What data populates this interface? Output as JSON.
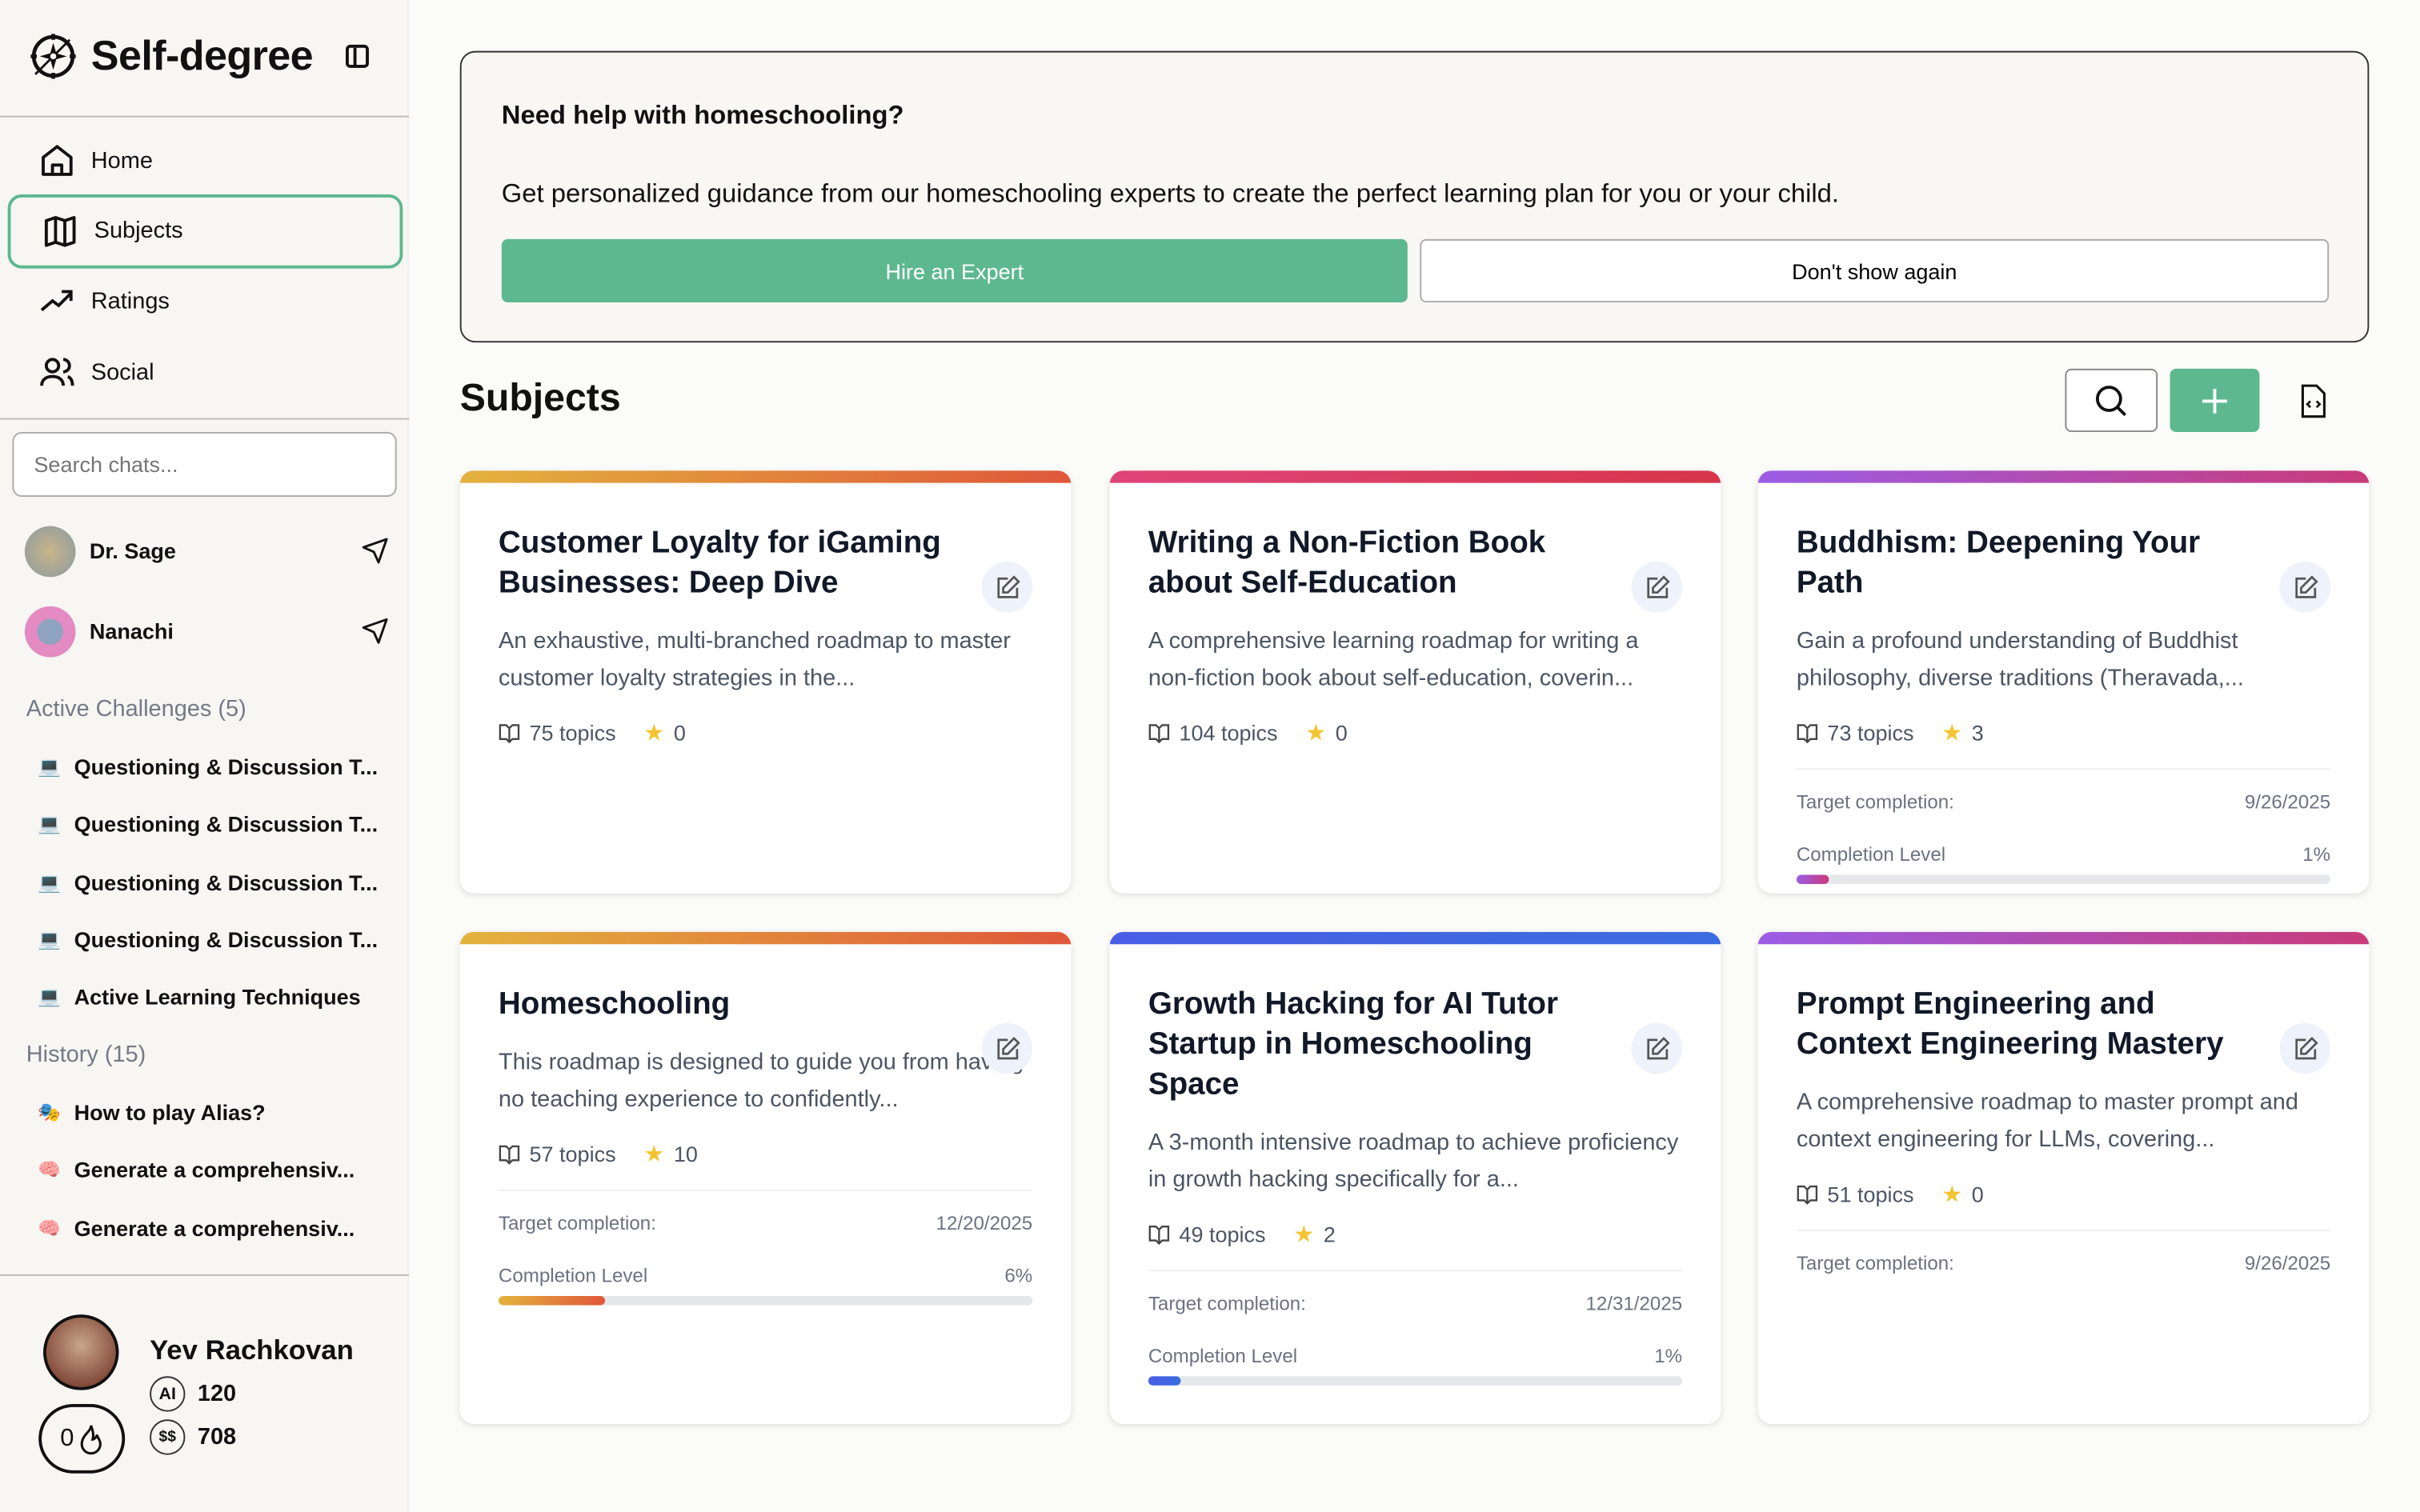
{
  "app": {
    "name": "Self-degree"
  },
  "sidebar": {
    "nav": [
      {
        "label": "Home",
        "icon": "home-icon"
      },
      {
        "label": "Subjects",
        "icon": "map-icon",
        "active": true
      },
      {
        "label": "Ratings",
        "icon": "trending-up-icon"
      },
      {
        "label": "Social",
        "icon": "users-icon"
      }
    ],
    "search_placeholder": "Search chats...",
    "agents": [
      {
        "name": "Dr. Sage"
      },
      {
        "name": "Nanachi"
      }
    ],
    "active_challenges_label": "Active Challenges (5)",
    "challenges": [
      {
        "emoji": "💻",
        "label": "Questioning & Discussion T..."
      },
      {
        "emoji": "💻",
        "label": "Questioning & Discussion T..."
      },
      {
        "emoji": "💻",
        "label": "Questioning & Discussion T..."
      },
      {
        "emoji": "💻",
        "label": "Questioning & Discussion T..."
      },
      {
        "emoji": "💻",
        "label": "Active Learning Techniques"
      }
    ],
    "history_label": "History (15)",
    "history": [
      {
        "emoji": "🎭",
        "label": "How to play Alias?"
      },
      {
        "emoji": "🧠",
        "label": "Generate a comprehensiv..."
      },
      {
        "emoji": "🧠",
        "label": "Generate a comprehensiv..."
      }
    ],
    "user": {
      "name": "Yev Rachkovan",
      "ai_credits": "120",
      "coins": "708",
      "streak": "0"
    }
  },
  "banner": {
    "title": "Need help with homeschooling?",
    "text": "Get personalized guidance from our homeschooling experts to create the perfect learning plan for you or your child.",
    "hire_label": "Hire an Expert",
    "dismiss_label": "Don't show again"
  },
  "subjects": {
    "title": "Subjects",
    "colors": {
      "accent": "#5db88f"
    },
    "cards": [
      {
        "title": "Customer Loyalty for iGaming Businesses: Deep Dive",
        "desc": "An exhaustive, multi-branched roadmap to master customer loyalty strategies in the...",
        "topics": "75 topics",
        "stars": "0",
        "gradient": [
          "#e3b33e",
          "#e0573a"
        ]
      },
      {
        "title": "Writing a Non-Fiction Book about Self-Education",
        "desc": "A comprehensive learning roadmap for writing a non-fiction book about self-education, coverin...",
        "topics": "104 topics",
        "stars": "0",
        "gradient": [
          "#e0457a",
          "#d6354a"
        ]
      },
      {
        "title": "Buddhism: Deepening Your Path",
        "desc": "Gain a profound understanding of Buddhist philosophy, diverse traditions (Theravada,...",
        "topics": "73 topics",
        "stars": "3",
        "target_label": "Target completion:",
        "target": "9/26/2025",
        "completion_label": "Completion Level",
        "completion": "1%",
        "completion_value": 1,
        "gradient": [
          "#9b5de5",
          "#c93b7a"
        ]
      },
      {
        "title": "Homeschooling",
        "desc": "This roadmap is designed to guide you from having no teaching experience to confidently...",
        "topics": "57 topics",
        "stars": "10",
        "target_label": "Target completion:",
        "target": "12/20/2025",
        "completion_label": "Completion Level",
        "completion": "6%",
        "completion_value": 6,
        "gradient": [
          "#e3b33e",
          "#e0573a"
        ]
      },
      {
        "title": "Growth Hacking for AI Tutor Startup in Homeschooling Space",
        "desc": "A 3-month intensive roadmap to achieve proficiency in growth hacking specifically for a...",
        "topics": "49 topics",
        "stars": "2",
        "target_label": "Target completion:",
        "target": "12/31/2025",
        "completion_label": "Completion Level",
        "completion": "1%",
        "completion_value": 1,
        "gradient": [
          "#4a5ee5",
          "#3b6ce0"
        ]
      },
      {
        "title": "Prompt Engineering and Context Engineering Mastery",
        "desc": "A comprehensive roadmap to master prompt and context engineering for LLMs, covering...",
        "topics": "51 topics",
        "stars": "0",
        "target_label": "Target completion:",
        "target": "9/26/2025",
        "gradient": [
          "#9b5de5",
          "#c93b7a"
        ]
      }
    ]
  }
}
